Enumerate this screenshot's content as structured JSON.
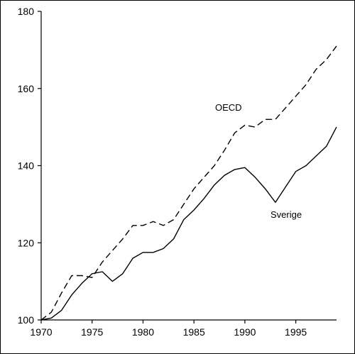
{
  "chart_data": {
    "type": "line",
    "xlim": [
      1970,
      1999
    ],
    "ylim": [
      100,
      180
    ],
    "x_ticks": [
      1970,
      1975,
      1980,
      1985,
      1990,
      1995
    ],
    "y_ticks": [
      100,
      120,
      140,
      160,
      180
    ],
    "grid": false,
    "legend": "none",
    "series": [
      {
        "name": "OECD",
        "style": "dashed",
        "color": "#000000",
        "x": [
          1970,
          1971,
          1972,
          1973,
          1974,
          1975,
          1976,
          1977,
          1978,
          1979,
          1980,
          1981,
          1982,
          1983,
          1984,
          1985,
          1986,
          1987,
          1988,
          1989,
          1990,
          1991,
          1992,
          1993,
          1994,
          1995,
          1996,
          1997,
          1998,
          1999
        ],
        "values": [
          100,
          102,
          107,
          111.5,
          111.5,
          111,
          115,
          118,
          121,
          124.5,
          124.5,
          125.5,
          124.5,
          126,
          130,
          134,
          137,
          140,
          144,
          148.5,
          150.5,
          150,
          152,
          152,
          155,
          158,
          161,
          165,
          167.5,
          171
        ]
      },
      {
        "name": "Sverige",
        "style": "solid",
        "color": "#000000",
        "x": [
          1970,
          1971,
          1972,
          1973,
          1974,
          1975,
          1976,
          1977,
          1978,
          1979,
          1980,
          1981,
          1982,
          1983,
          1984,
          1985,
          1986,
          1987,
          1988,
          1989,
          1990,
          1991,
          1992,
          1993,
          1994,
          1995,
          1996,
          1997,
          1998,
          1999
        ],
        "values": [
          100,
          100.5,
          102.5,
          106.5,
          109.5,
          112,
          112.5,
          110,
          112,
          116,
          117.5,
          117.5,
          118.5,
          121,
          126,
          128.5,
          131.5,
          135,
          137.5,
          139,
          139.5,
          137,
          134,
          130.5,
          134.5,
          138.5,
          140,
          142.5,
          145,
          150
        ]
      }
    ]
  }
}
